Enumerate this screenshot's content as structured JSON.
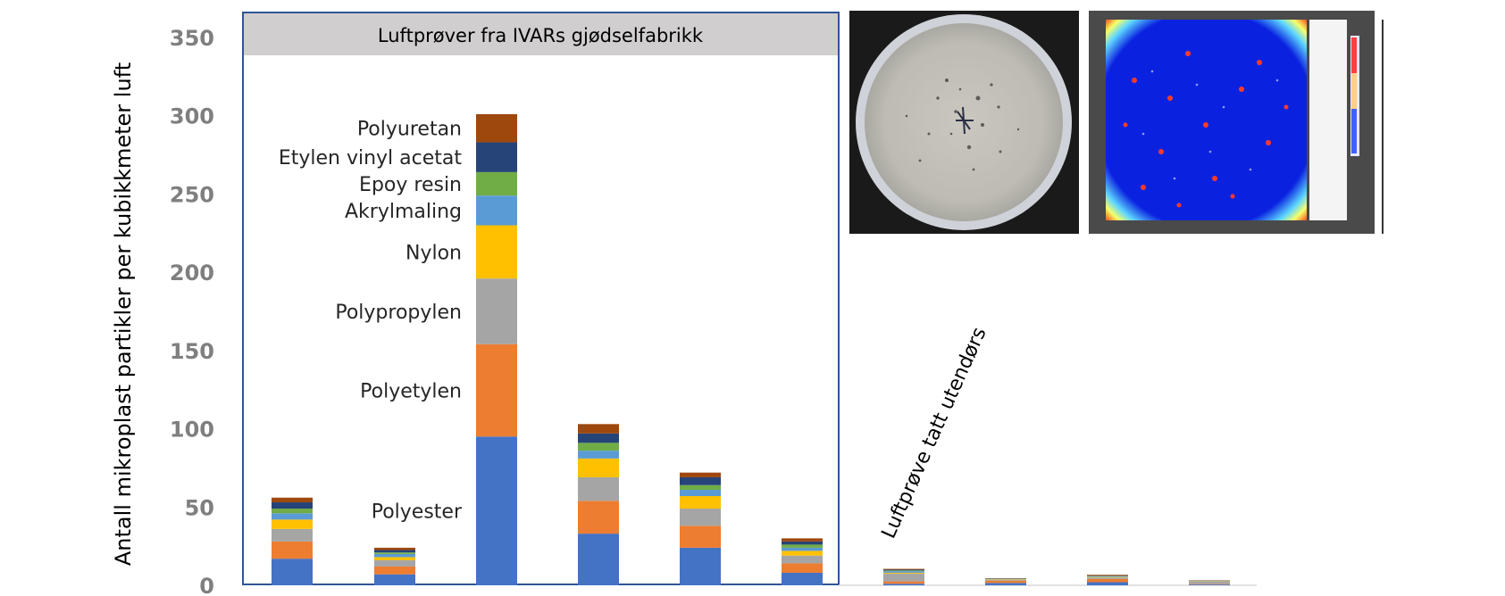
{
  "chart_data": {
    "type": "bar",
    "stacked": true,
    "title": "",
    "xlabel": "",
    "ylabel": "Antall mikroplast partikler per kubikkmeter luft",
    "ylim": [
      0,
      350
    ],
    "yticks": [
      0,
      50,
      100,
      150,
      200,
      250,
      300,
      350
    ],
    "panel_title": "Luftprøver fra IVARs gjødselfabrikk",
    "outdoor_label": "Luftprøve tatt utendørs",
    "indoor_count": 6,
    "series": [
      {
        "name": "Polyester",
        "color": "#4472C4",
        "values": [
          17,
          7,
          95,
          33,
          24,
          8,
          1,
          1.5,
          2,
          0.5
        ]
      },
      {
        "name": "Polyetylen",
        "color": "#ED7D31",
        "values": [
          11,
          5,
          59,
          21,
          14,
          6,
          1.5,
          1.5,
          2,
          0.3
        ]
      },
      {
        "name": "Polypropylen",
        "color": "#A5A5A5",
        "values": [
          8,
          4,
          42,
          15,
          11,
          5,
          5,
          0.5,
          1,
          1.5
        ]
      },
      {
        "name": "Nylon",
        "color": "#FFC000",
        "values": [
          6,
          2,
          34,
          12,
          8,
          3,
          0.5,
          0.2,
          0.3,
          0.2
        ]
      },
      {
        "name": "Akrylmaling",
        "color": "#5B9BD5",
        "values": [
          4,
          2,
          19,
          5,
          4,
          2,
          1,
          0.2,
          0.3,
          0.2
        ]
      },
      {
        "name": "Epoy resin",
        "color": "#70AD47",
        "values": [
          3,
          1,
          15,
          5,
          3,
          2,
          0.5,
          0.2,
          0.3,
          0.1
        ]
      },
      {
        "name": "Etylen vinyl acetat",
        "color": "#264478",
        "values": [
          4,
          1.5,
          19,
          6,
          5,
          2,
          0.5,
          0.2,
          0.3,
          0.2
        ]
      },
      {
        "name": "Polyuretan",
        "color": "#9E480E",
        "values": [
          3,
          1.5,
          18,
          6,
          3,
          2,
          0.5,
          0.2,
          0.5,
          0.2
        ]
      }
    ],
    "legend_placement": "inline next to third bar",
    "grid": false
  },
  "images": [
    {
      "name": "filter-photo",
      "description_icon": "filter-sample-photo"
    },
    {
      "name": "particle-map",
      "description_icon": "particle-heatmap"
    }
  ]
}
